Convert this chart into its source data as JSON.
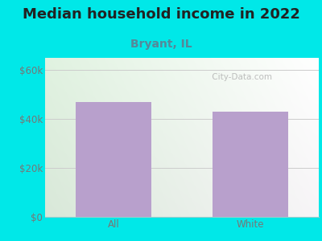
{
  "title": "Median household income in 2022",
  "subtitle": "Bryant, IL",
  "categories": [
    "All",
    "White"
  ],
  "values": [
    47000,
    43000
  ],
  "bar_color": "#b8a0cc",
  "background_color": "#00e8e8",
  "title_fontsize": 13,
  "subtitle_fontsize": 10,
  "tick_label_fontsize": 8.5,
  "yticks": [
    0,
    20000,
    40000,
    60000
  ],
  "ytick_labels": [
    "$0",
    "$20k",
    "$40k",
    "$60k"
  ],
  "ylim": [
    0,
    65000
  ],
  "subtitle_color": "#558899",
  "title_color": "#222222",
  "watermark": " City-Data.com",
  "watermark_color": "#aaaaaa",
  "tick_color": "#777777",
  "grid_color": "#cccccc"
}
